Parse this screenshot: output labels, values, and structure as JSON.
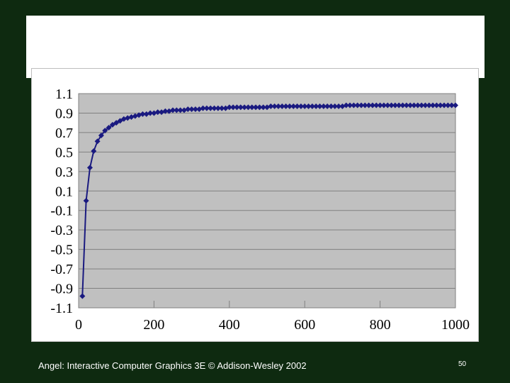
{
  "slide": {
    "footer": "Angel: Interactive Computer Graphics 3E © Addison-Wesley 2002",
    "page_number": "50"
  },
  "chart_data": {
    "type": "line",
    "title": "",
    "xlabel": "",
    "ylabel": "",
    "xlim": [
      0,
      1000
    ],
    "ylim": [
      -1.1,
      1.1
    ],
    "x_ticks": [
      0,
      200,
      400,
      600,
      800,
      1000
    ],
    "x_tick_labels": [
      "0",
      "200",
      "400",
      "600",
      "800",
      "1000"
    ],
    "y_ticks": [
      1.1,
      0.9,
      0.7,
      0.5,
      0.3,
      0.1,
      -0.1,
      -0.3,
      -0.5,
      -0.7,
      -0.9,
      -1.1
    ],
    "y_tick_labels": [
      "1.1",
      "0.9",
      "0.7",
      "0.5",
      "0.3",
      "0.1",
      "-0.1",
      "-0.3",
      "-0.5",
      "-0.7",
      "-0.9",
      "-1.1"
    ],
    "grid": true,
    "plot_background": "#c0c0c0",
    "series_color": "#1a1a80",
    "series": [
      {
        "x": [
          10,
          20,
          30,
          40,
          50,
          60,
          70,
          80,
          90,
          100,
          110,
          120,
          130,
          140,
          150,
          160,
          170,
          180,
          190,
          200,
          210,
          220,
          230,
          240,
          250,
          260,
          270,
          280,
          290,
          300,
          310,
          320,
          330,
          340,
          350,
          360,
          370,
          380,
          390,
          400,
          410,
          420,
          430,
          440,
          450,
          460,
          470,
          480,
          490,
          500,
          510,
          520,
          530,
          540,
          550,
          560,
          570,
          580,
          590,
          600,
          610,
          620,
          630,
          640,
          650,
          660,
          670,
          680,
          690,
          700,
          710,
          720,
          730,
          740,
          750,
          760,
          770,
          780,
          790,
          800,
          810,
          820,
          830,
          840,
          850,
          860,
          870,
          880,
          890,
          900,
          910,
          920,
          930,
          940,
          950,
          960,
          970,
          980,
          990,
          1000
        ],
        "y": [
          -0.98,
          0.0,
          0.34,
          0.51,
          0.61,
          0.67,
          0.72,
          0.75,
          0.78,
          0.8,
          0.82,
          0.84,
          0.85,
          0.86,
          0.87,
          0.88,
          0.89,
          0.89,
          0.9,
          0.9,
          0.91,
          0.91,
          0.92,
          0.92,
          0.93,
          0.93,
          0.93,
          0.93,
          0.94,
          0.94,
          0.94,
          0.94,
          0.95,
          0.95,
          0.95,
          0.95,
          0.95,
          0.95,
          0.95,
          0.96,
          0.96,
          0.96,
          0.96,
          0.96,
          0.96,
          0.96,
          0.96,
          0.96,
          0.96,
          0.96,
          0.97,
          0.97,
          0.97,
          0.97,
          0.97,
          0.97,
          0.97,
          0.97,
          0.97,
          0.97,
          0.97,
          0.97,
          0.97,
          0.97,
          0.97,
          0.97,
          0.97,
          0.97,
          0.97,
          0.97,
          0.98,
          0.98,
          0.98,
          0.98,
          0.98,
          0.98,
          0.98,
          0.98,
          0.98,
          0.98,
          0.98,
          0.98,
          0.98,
          0.98,
          0.98,
          0.98,
          0.98,
          0.98,
          0.98,
          0.98,
          0.98,
          0.98,
          0.98,
          0.98,
          0.98,
          0.98,
          0.98,
          0.98,
          0.98,
          0.98
        ]
      }
    ]
  }
}
